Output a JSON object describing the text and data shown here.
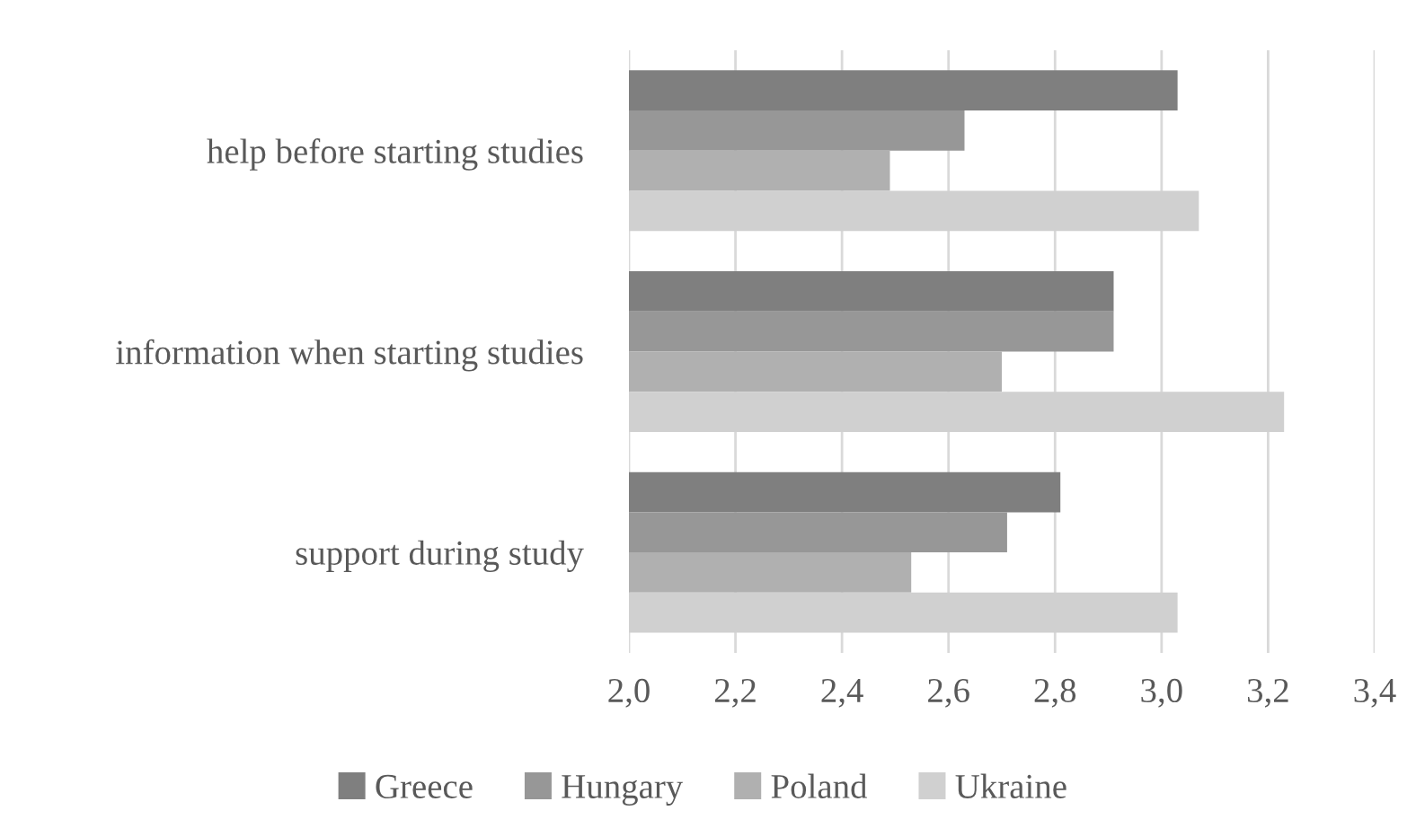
{
  "chart_data": {
    "type": "bar",
    "orientation": "horizontal",
    "categories": [
      "help before starting studies",
      "information when starting studies",
      "support during study"
    ],
    "series": [
      {
        "name": "Greece",
        "color": "#7f7f7f",
        "values": [
          3.03,
          2.91,
          2.81
        ]
      },
      {
        "name": "Hungary",
        "color": "#979797",
        "values": [
          2.63,
          2.91,
          2.71
        ]
      },
      {
        "name": "Poland",
        "color": "#b0b0b0",
        "values": [
          2.49,
          2.7,
          2.53
        ]
      },
      {
        "name": "Ukraine",
        "color": "#d0d0d0",
        "values": [
          3.07,
          3.23,
          3.03
        ]
      }
    ],
    "xlim": [
      2.0,
      3.4
    ],
    "xticks": [
      {
        "value": 2.0,
        "label": "2,0"
      },
      {
        "value": 2.2,
        "label": "2,2"
      },
      {
        "value": 2.4,
        "label": "2,4"
      },
      {
        "value": 2.6,
        "label": "2,6"
      },
      {
        "value": 2.8,
        "label": "2,8"
      },
      {
        "value": 3.0,
        "label": "3,0"
      },
      {
        "value": 3.2,
        "label": "3,2"
      },
      {
        "value": 3.4,
        "label": "3,4"
      }
    ],
    "grid": "x",
    "legend": "bottom"
  }
}
